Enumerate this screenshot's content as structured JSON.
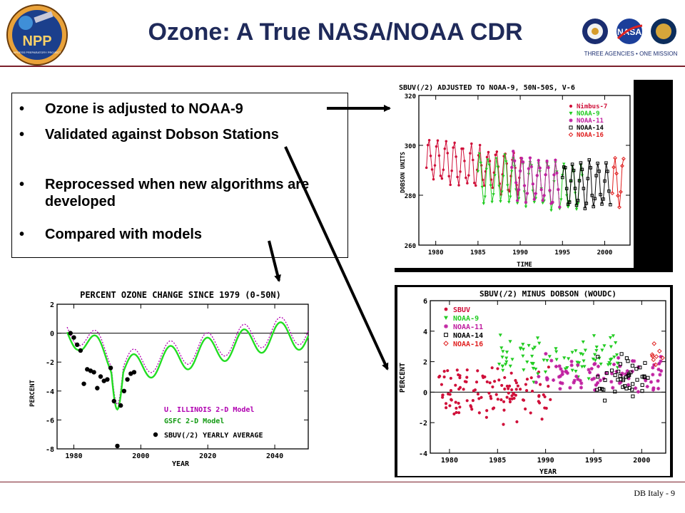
{
  "slide": {
    "title": "Ozone: A True NASA/NOAA CDR",
    "footer": "DB Italy - 9",
    "logos": {
      "npp_text": "NPP",
      "npp_subtitle": "NPOESS PREPARATORY PROJECT",
      "agencies_tagline": "THREE AGENCIES • ONE MISSION",
      "nasa_text": "NASA"
    },
    "bullets": [
      "Ozone is adjusted to NOAA-9",
      "Validated against  Dobson Stations",
      "Reprocessed when new algorithms are developed",
      "Compared with models"
    ]
  },
  "colors": {
    "title": "#1f2a5a",
    "rule": "#7b1f2a",
    "nimbus": "#d0103a",
    "noaa9": "#22cc22",
    "noaa11": "#c020a0",
    "noaa14": "#000000",
    "noaa16": "#e02020",
    "model_illinois": "#b000b0",
    "model_gsfc": "#22dd22"
  },
  "chart_data": [
    {
      "id": "adjusted",
      "type": "line",
      "title": "SBUV(/2) ADJUSTED TO NOAA-9, 50N-50S, V-6",
      "xlabel": "TIME",
      "ylabel": "DOBSON UNITS",
      "xlim": [
        1978,
        2003
      ],
      "ylim": [
        260,
        320
      ],
      "xticks": [
        "1980",
        "1985",
        "1990",
        "1995",
        "2000"
      ],
      "yticks": [
        "260",
        "280",
        "300",
        "320"
      ],
      "grid": false,
      "legend": "top-right",
      "series": [
        {
          "name": "Nimbus-7",
          "marker": "circle",
          "x_start": 1978.9,
          "x_end": 1990.2,
          "base": [
            295,
            288
          ],
          "amp": 8
        },
        {
          "name": "NOAA-9",
          "marker": "triangle",
          "x_start": 1985.0,
          "x_end": 1997.5,
          "base": [
            287,
            283
          ],
          "amp": 9
        },
        {
          "name": "NOAA-11",
          "marker": "asterisk",
          "x_start": 1989.0,
          "x_end": 1994.8,
          "base": [
            288,
            284
          ],
          "amp": 9
        },
        {
          "name": "NOAA-14",
          "marker": "square",
          "x_start": 1995.0,
          "x_end": 2000.8,
          "base": [
            284,
            284
          ],
          "amp": 9
        },
        {
          "name": "NOAA-16",
          "marker": "diamond",
          "x_start": 2000.9,
          "x_end": 2002.3,
          "base": [
            285,
            285
          ],
          "amp": 9
        }
      ]
    },
    {
      "id": "minus_dobson",
      "type": "scatter",
      "title": "SBUV(/2) MINUS DOBSON (WOUDC)",
      "xlabel": "YEAR",
      "ylabel": "PERCENT",
      "xlim": [
        1978,
        2002.5
      ],
      "ylim": [
        -4,
        6
      ],
      "xticks": [
        "1980",
        "1985",
        "1990",
        "1995",
        "2000"
      ],
      "yticks": [
        "-4",
        "-2",
        "0",
        "2",
        "4",
        "6"
      ],
      "zero_line": true,
      "legend": "top-left",
      "series": [
        {
          "name": "SBUV",
          "marker": "circle",
          "x_start": 1978.9,
          "x_end": 1990.5,
          "mean": 0.1,
          "spread": 1.3,
          "count": 120
        },
        {
          "name": "NOAA-9",
          "marker": "triangle",
          "x_start": 1985.0,
          "x_end": 1997.6,
          "mean": 2.3,
          "spread": 1.0,
          "count": 85
        },
        {
          "name": "NOAA-11",
          "marker": "asterisk",
          "x_start": 1989.0,
          "x_end": 2002.3,
          "mean": 1.2,
          "spread": 0.9,
          "count": 85
        },
        {
          "name": "NOAA-14",
          "marker": "square",
          "x_start": 1995.3,
          "x_end": 2000.7,
          "mean": 0.9,
          "spread": 0.9,
          "count": 45
        },
        {
          "name": "NOAA-16",
          "marker": "diamond",
          "x_start": 2000.8,
          "x_end": 2002.3,
          "mean": 2.2,
          "spread": 0.8,
          "count": 8
        }
      ]
    },
    {
      "id": "percent_change",
      "type": "line",
      "title": "PERCENT OZONE CHANGE SINCE 1979 (0-50N)",
      "xlabel": "YEAR",
      "ylabel": "PERCENT",
      "xlim": [
        1975,
        2050
      ],
      "ylim": [
        -8,
        2
      ],
      "xticks": [
        "1980",
        "2000",
        "2020",
        "2040"
      ],
      "yticks": [
        "2",
        "0",
        "-2",
        "-4",
        "-6",
        "-8"
      ],
      "zero_line": true,
      "legend_labels": [
        "U. ILLINOIS 2-D Model",
        "GSFC 2-D Model",
        "SBUV(/2) YEARLY AVERAGE"
      ],
      "series": [
        {
          "name": "U. ILLINOIS 2-D Model",
          "style": "dotted"
        },
        {
          "name": "GSFC 2-D Model",
          "style": "solid"
        },
        {
          "name": "SBUV(/2) YEARLY AVERAGE",
          "style": "points",
          "x": [
            1979,
            1980,
            1981,
            1982,
            1983,
            1984,
            1985,
            1986,
            1987,
            1988,
            1989,
            1990,
            1991,
            1992,
            1993,
            1994,
            1995,
            1996,
            1997,
            1998
          ],
          "y": [
            0,
            -0.3,
            -0.8,
            -1.2,
            -3.5,
            -2.5,
            -2.6,
            -2.7,
            -3.8,
            -3.0,
            -3.3,
            -3.2,
            -2.4,
            -4.7,
            -7.8,
            -5.0,
            -4.0,
            -3.2,
            -2.8,
            -2.7
          ]
        }
      ]
    }
  ]
}
